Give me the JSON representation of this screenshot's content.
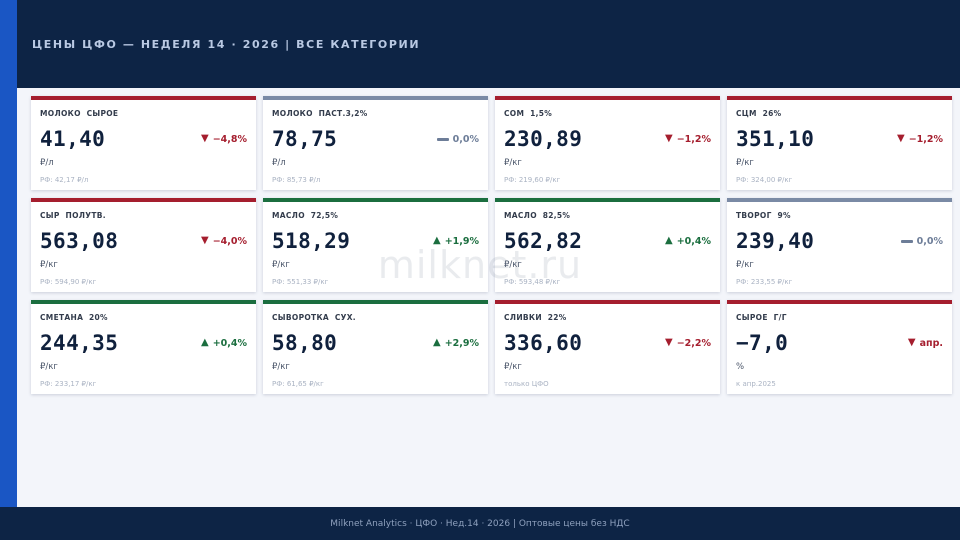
{
  "header": {
    "title": "ЦЕНЫ ЦФО — НЕДЕЛЯ 14 · 2026   |   ВСЕ КАТЕГОРИИ"
  },
  "watermark": "milknet.ru",
  "cards": [
    {
      "label": "МОЛОКО  СЫРОЕ",
      "value": "41,40",
      "change": "−4,8%",
      "direction": "down",
      "unit": "₽/л",
      "note": "РФ: 42,17 ₽/л"
    },
    {
      "label": "МОЛОКО  ПАСТ.3,2%",
      "value": "78,75",
      "change": "0,0%",
      "direction": "flat",
      "unit": "₽/л",
      "note": "РФ: 85,73 ₽/л"
    },
    {
      "label": "СОМ  1,5%",
      "value": "230,89",
      "change": "−1,2%",
      "direction": "down",
      "unit": "₽/кг",
      "note": "РФ: 219,60 ₽/кг"
    },
    {
      "label": "СЦМ  26%",
      "value": "351,10",
      "change": "−1,2%",
      "direction": "down",
      "unit": "₽/кг",
      "note": "РФ: 324,00 ₽/кг"
    },
    {
      "label": "СЫР  ПОЛУТВ.",
      "value": "563,08",
      "change": "−4,0%",
      "direction": "down",
      "unit": "₽/кг",
      "note": "РФ: 594,90 ₽/кг"
    },
    {
      "label": "МАСЛО  72,5%",
      "value": "518,29",
      "change": "+1,9%",
      "direction": "up",
      "unit": "₽/кг",
      "note": "РФ: 551,33 ₽/кг"
    },
    {
      "label": "МАСЛО  82,5%",
      "value": "562,82",
      "change": "+0,4%",
      "direction": "up",
      "unit": "₽/кг",
      "note": "РФ: 593,48 ₽/кг"
    },
    {
      "label": "ТВОРОГ  9%",
      "value": "239,40",
      "change": "0,0%",
      "direction": "flat",
      "unit": "₽/кг",
      "note": "РФ: 233,55 ₽/кг"
    },
    {
      "label": "СМЕТАНА  20%",
      "value": "244,35",
      "change": "+0,4%",
      "direction": "up",
      "unit": "₽/кг",
      "note": "РФ: 233,17 ₽/кг"
    },
    {
      "label": "СЫВОРОТКА  СУХ.",
      "value": "58,80",
      "change": "+2,9%",
      "direction": "up",
      "unit": "₽/кг",
      "note": "РФ: 61,65 ₽/кг"
    },
    {
      "label": "СЛИВКИ  22%",
      "value": "336,60",
      "change": "−2,2%",
      "direction": "down",
      "unit": "₽/кг",
      "note": "только ЦФО"
    },
    {
      "label": "СЫРОЕ  Г/Г",
      "value": "−7,0",
      "change": "апр.",
      "direction": "down",
      "unit": "%",
      "note": "к апр.2025"
    }
  ],
  "footer": {
    "text": "Milknet Analytics · ЦФО · Нед.14 · 2026  |  Оптовые цены без НДС"
  },
  "colors": {
    "down": "#a51e2e",
    "up": "#1b6e3f",
    "flat": "#7a8aa5",
    "header_bg": "#0d2445",
    "accent": "#1a56c4"
  }
}
